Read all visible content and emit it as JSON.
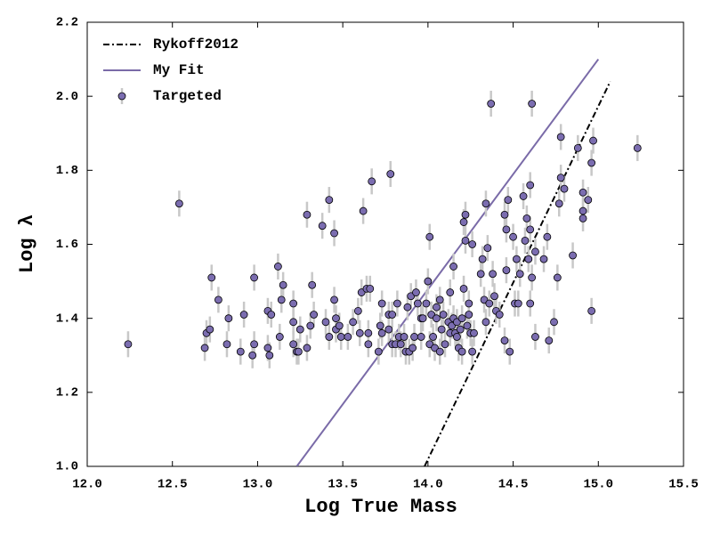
{
  "chart_data": {
    "type": "scatter",
    "x_label": "Log True Mass",
    "y_label": "Log λ",
    "xlim": [
      12.0,
      15.5
    ],
    "ylim": [
      1.0,
      2.2
    ],
    "xticks": [
      {
        "value": 12,
        "label": "12.0"
      },
      12.5,
      {
        "value": 13,
        "label": "13.0"
      },
      13.5,
      {
        "value": 14,
        "label": "14.0"
      },
      14.5,
      {
        "value": 15,
        "label": "15.0"
      },
      15.5
    ],
    "yticks": [
      {
        "value": 1,
        "label": "1.0"
      },
      1.2,
      1.4,
      1.6,
      1.8,
      {
        "value": 2,
        "label": "2.0"
      },
      2.2
    ],
    "legend": "upper left",
    "series": [
      {
        "name": "Rykoff2012",
        "type": "line",
        "linestyle": "dashdot",
        "color": "#000000",
        "x": [
          13.98,
          15.07
        ],
        "values": [
          1.0,
          2.04
        ]
      },
      {
        "name": "My Fit",
        "type": "line",
        "linestyle": "solid",
        "color": "#7a6ba8",
        "x": [
          13.23,
          15.0
        ],
        "values": [
          1.0,
          2.1
        ]
      },
      {
        "name": "Targeted",
        "type": "scatter",
        "color": "#7b6db0",
        "errorbar_color": "#c8c8c8",
        "yerr": 0.035,
        "x": [
          12.24,
          12.54,
          12.69,
          12.7,
          12.72,
          12.73,
          12.77,
          12.83,
          12.82,
          12.9,
          12.92,
          12.97,
          12.98,
          12.98,
          13.06,
          13.06,
          13.07,
          13.08,
          13.12,
          13.13,
          13.15,
          13.14,
          13.21,
          13.21,
          13.21,
          13.23,
          13.24,
          13.25,
          13.29,
          13.29,
          13.32,
          13.31,
          13.33,
          13.38,
          13.4,
          13.42,
          13.42,
          13.45,
          13.45,
          13.46,
          13.46,
          13.48,
          13.49,
          13.53,
          13.56,
          13.59,
          13.6,
          13.62,
          13.61,
          13.64,
          13.65,
          13.65,
          13.67,
          13.66,
          13.71,
          13.72,
          13.73,
          13.73,
          13.77,
          13.78,
          13.77,
          13.79,
          13.79,
          13.81,
          13.82,
          13.83,
          13.84,
          13.86,
          13.87,
          13.88,
          13.89,
          13.9,
          13.91,
          13.92,
          13.93,
          13.94,
          13.96,
          13.96,
          13.97,
          13.99,
          14.0,
          14.01,
          14.01,
          14.02,
          14.03,
          14.04,
          14.05,
          14.05,
          14.07,
          14.07,
          14.08,
          14.09,
          14.1,
          14.12,
          14.13,
          14.13,
          14.14,
          14.15,
          14.15,
          14.16,
          14.17,
          14.17,
          14.18,
          14.19,
          14.2,
          14.2,
          14.21,
          14.21,
          14.22,
          14.22,
          14.23,
          14.24,
          14.24,
          14.25,
          14.26,
          14.26,
          14.27,
          14.31,
          14.32,
          14.33,
          14.34,
          14.34,
          14.35,
          14.36,
          14.37,
          14.38,
          14.39,
          14.4,
          14.42,
          14.45,
          14.45,
          14.46,
          14.46,
          14.47,
          14.48,
          14.5,
          14.51,
          14.52,
          14.53,
          14.54,
          14.56,
          14.57,
          14.58,
          14.59,
          14.6,
          14.6,
          14.61,
          14.6,
          14.61,
          14.63,
          14.63,
          14.68,
          14.7,
          14.71,
          14.74,
          14.76,
          14.77,
          14.78,
          14.78,
          14.8,
          14.85,
          14.88,
          14.91,
          14.91,
          14.91,
          14.94,
          14.96,
          14.96,
          14.97,
          15.23
        ],
        "values": [
          1.33,
          1.71,
          1.32,
          1.36,
          1.37,
          1.51,
          1.45,
          1.4,
          1.33,
          1.31,
          1.41,
          1.3,
          1.33,
          1.51,
          1.32,
          1.42,
          1.3,
          1.41,
          1.54,
          1.35,
          1.49,
          1.45,
          1.44,
          1.39,
          1.33,
          1.31,
          1.31,
          1.37,
          1.68,
          1.32,
          1.49,
          1.38,
          1.41,
          1.65,
          1.39,
          1.35,
          1.72,
          1.63,
          1.45,
          1.4,
          1.37,
          1.38,
          1.35,
          1.35,
          1.39,
          1.42,
          1.36,
          1.69,
          1.47,
          1.48,
          1.33,
          1.36,
          1.77,
          1.48,
          1.31,
          1.38,
          1.36,
          1.44,
          1.37,
          1.79,
          1.41,
          1.33,
          1.41,
          1.33,
          1.44,
          1.35,
          1.33,
          1.35,
          1.31,
          1.43,
          1.31,
          1.46,
          1.32,
          1.35,
          1.47,
          1.44,
          1.4,
          1.35,
          1.4,
          1.44,
          1.5,
          1.62,
          1.33,
          1.41,
          1.35,
          1.32,
          1.43,
          1.4,
          1.45,
          1.31,
          1.37,
          1.41,
          1.33,
          1.39,
          1.47,
          1.36,
          1.38,
          1.54,
          1.4,
          1.36,
          1.39,
          1.35,
          1.32,
          1.37,
          1.31,
          1.4,
          1.48,
          1.66,
          1.68,
          1.61,
          1.38,
          1.44,
          1.41,
          1.36,
          1.31,
          1.6,
          1.36,
          1.52,
          1.56,
          1.45,
          1.39,
          1.71,
          1.59,
          1.44,
          1.98,
          1.52,
          1.46,
          1.42,
          1.41,
          1.68,
          1.34,
          1.53,
          1.64,
          1.72,
          1.31,
          1.62,
          1.44,
          1.56,
          1.44,
          1.52,
          1.73,
          1.61,
          1.67,
          1.56,
          1.64,
          1.44,
          1.98,
          1.76,
          1.51,
          1.58,
          1.35,
          1.56,
          1.62,
          1.34,
          1.39,
          1.51,
          1.71,
          1.89,
          1.78,
          1.75,
          1.57,
          1.86,
          1.74,
          1.69,
          1.67,
          1.72,
          1.42,
          1.82,
          1.88,
          1.86
        ]
      }
    ]
  }
}
